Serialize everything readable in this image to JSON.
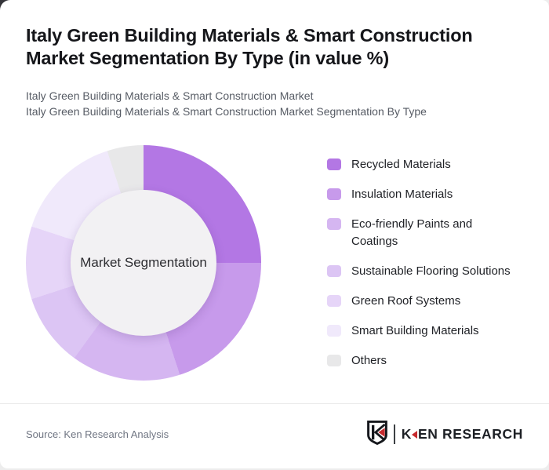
{
  "header": {
    "title": "Italy Green Building Materials & Smart Construction Market Segmentation By Type (in value %)",
    "subtitle_line1": "Italy Green Building Materials & Smart Construction Market",
    "subtitle_line2": "Italy Green Building Materials & Smart Construction Market Segmentation By Type"
  },
  "chart_data": {
    "type": "pie",
    "variant": "donut",
    "title": "Italy Green Building Materials & Smart Construction Market Segmentation By Type (in value %)",
    "center_label": "Market Segmentation",
    "unit": "value %",
    "start_angle_deg": 0,
    "direction": "clockwise",
    "legend_position": "right",
    "categories": [
      "Recycled Materials",
      "Insulation Materials",
      "Eco-friendly Paints and Coatings",
      "Sustainable Flooring Solutions",
      "Green Roof Systems",
      "Smart Building Materials",
      "Others"
    ],
    "values": [
      25,
      20,
      15,
      10,
      10,
      15,
      5
    ],
    "colors": [
      "#b377e4",
      "#c79aeb",
      "#d5b6f1",
      "#dcc5f4",
      "#e6d5f8",
      "#f0e9fb",
      "#e8e8e9"
    ],
    "hole_color": "#f2f1f3"
  },
  "legend": {
    "items": [
      {
        "label": "Recycled Materials",
        "color": "#b377e4"
      },
      {
        "label": "Insulation Materials",
        "color": "#c79aeb"
      },
      {
        "label": "Eco-friendly Paints and\nCoatings",
        "color": "#d5b6f1"
      },
      {
        "label": "Sustainable Flooring Solutions",
        "color": "#dcc5f4"
      },
      {
        "label": "Green Roof Systems",
        "color": "#e6d5f8"
      },
      {
        "label": "Smart Building Materials",
        "color": "#f0e9fb"
      },
      {
        "label": "Others",
        "color": "#e8e8e9"
      }
    ]
  },
  "footer": {
    "source": "Source: Ken Research Analysis",
    "logo": {
      "emblem": "ken-research-shield-k-icon",
      "wordmark_first_letter": "K",
      "wordmark_rest": "EN RESEARCH",
      "accent_color": "#c62a2e",
      "text_color": "#1d2025"
    }
  }
}
